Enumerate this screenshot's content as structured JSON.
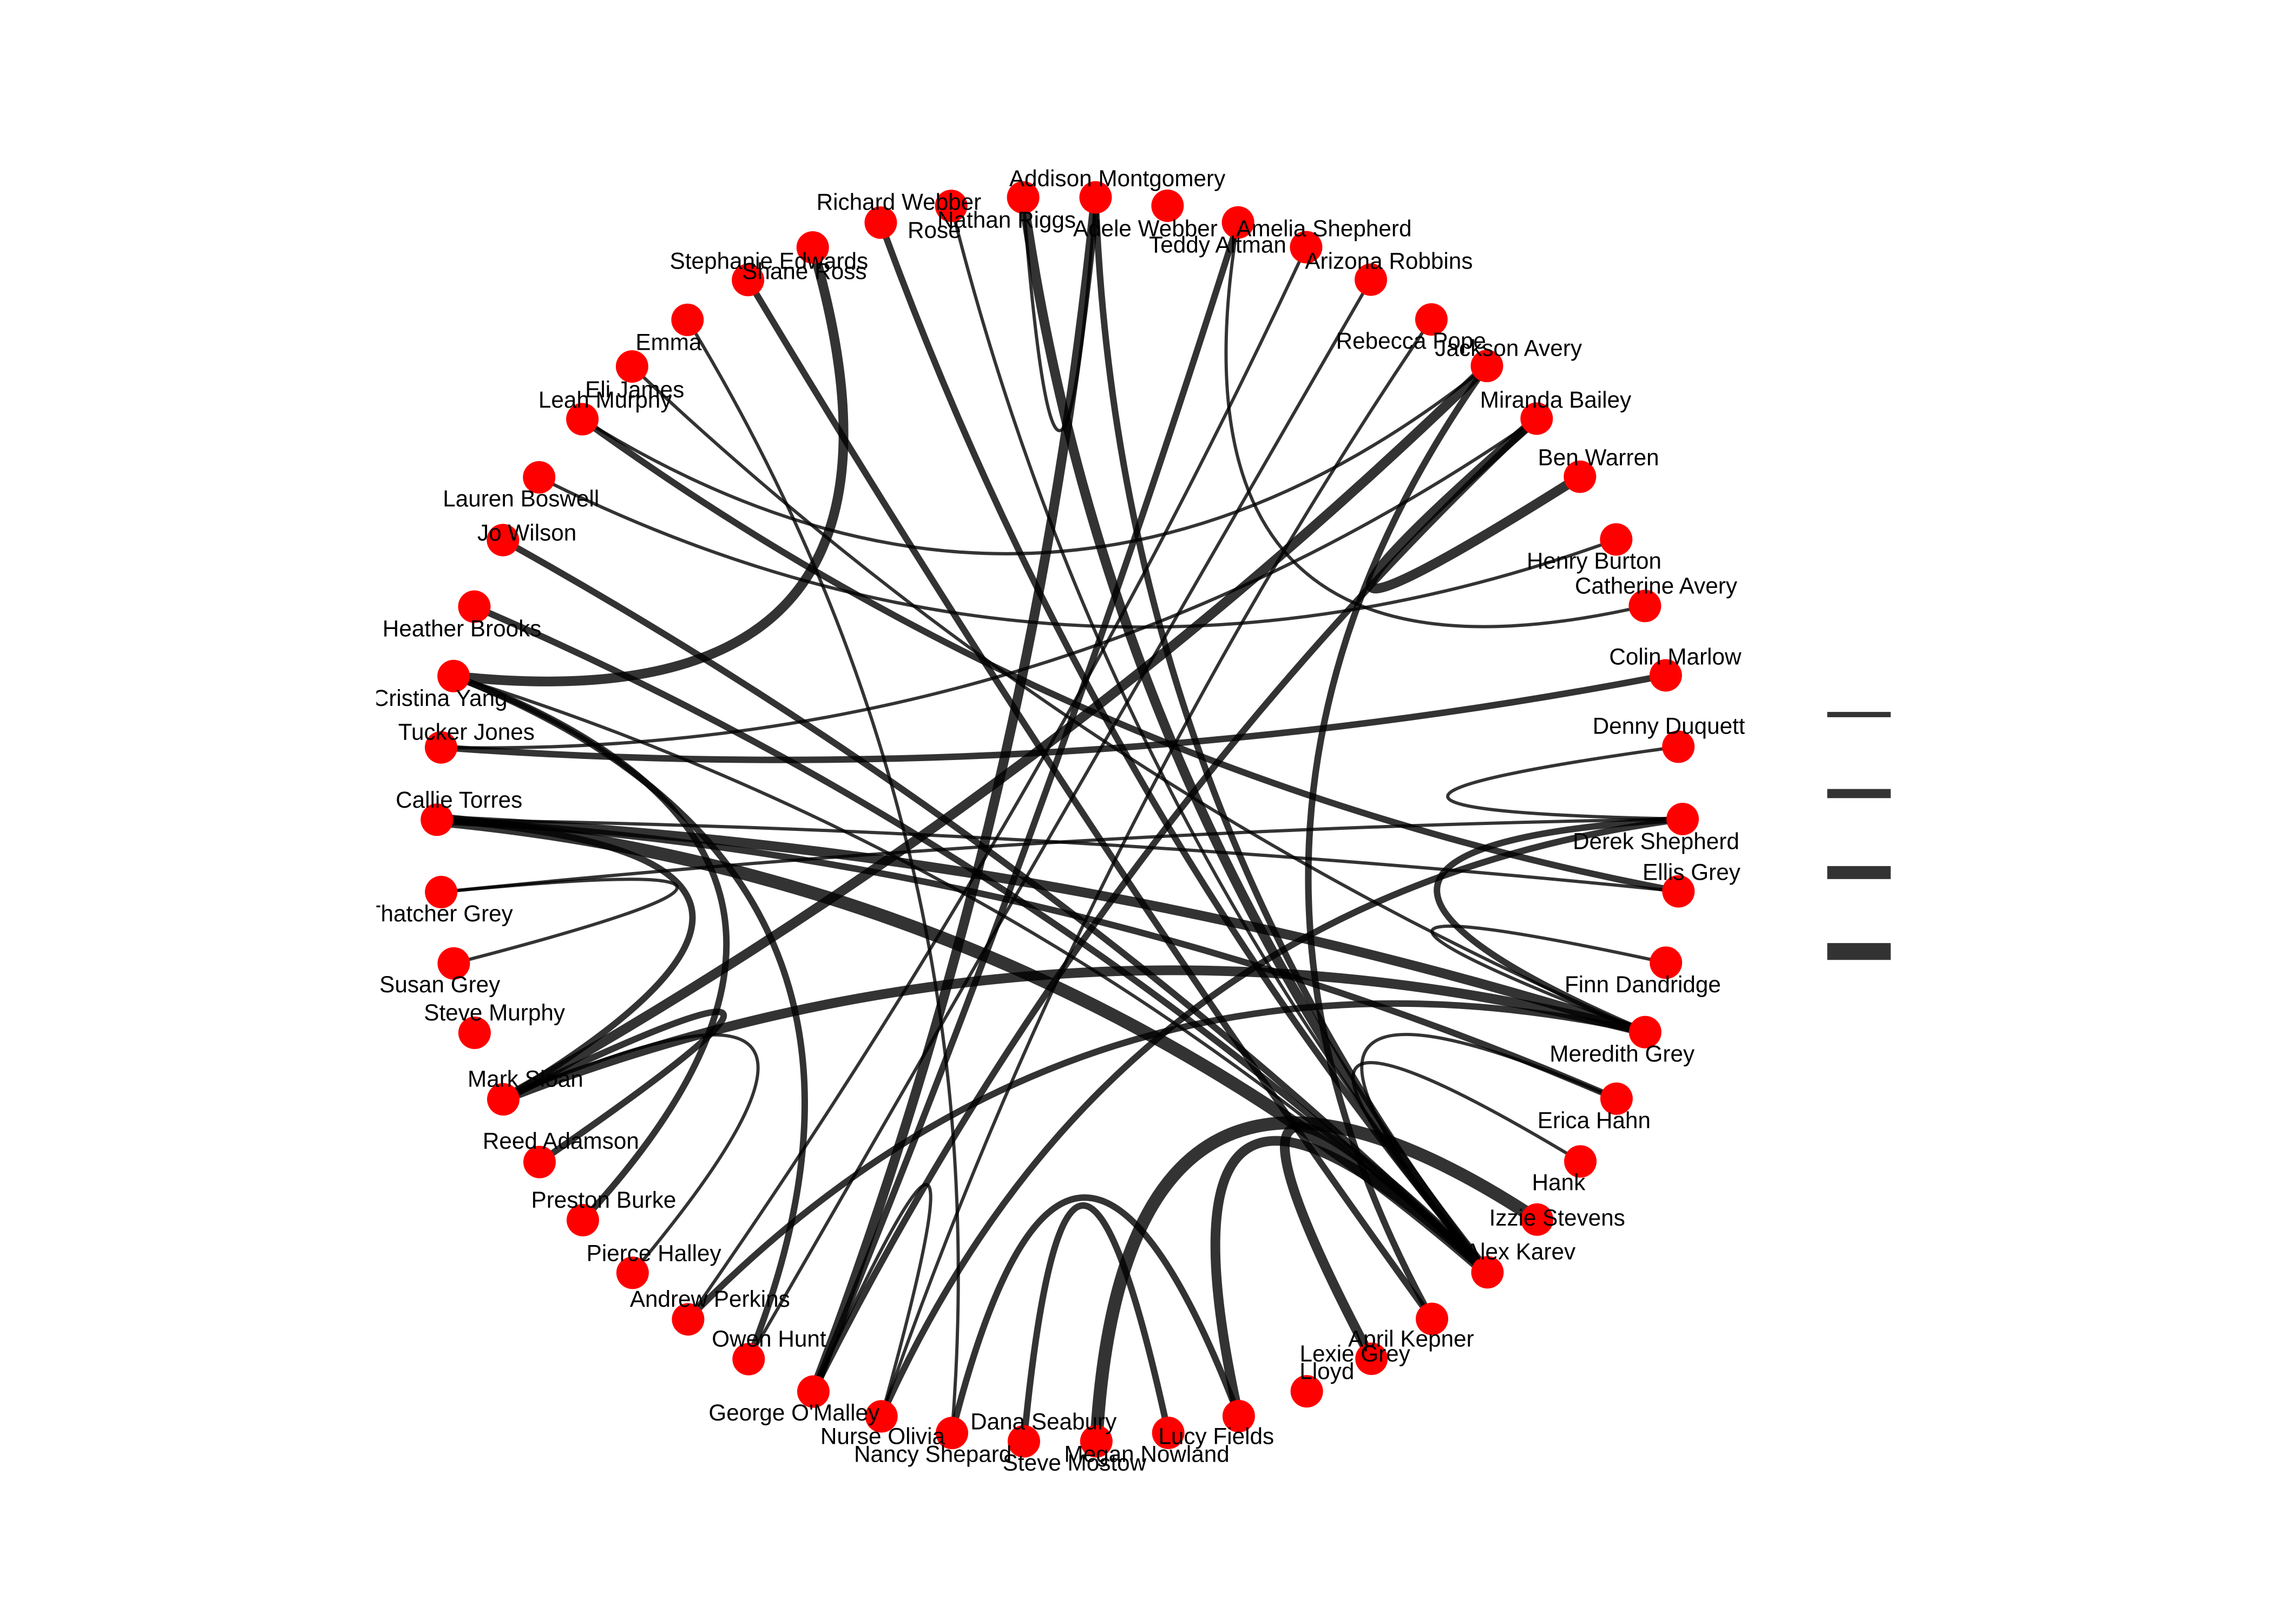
{
  "nodes": [
    {
      "label": "Addison Montgomery"
    },
    {
      "label": "Adele Webber"
    },
    {
      "label": "Amelia Shepherd"
    },
    {
      "label": "Teddy Altman"
    },
    {
      "label": "Arizona Robbins"
    },
    {
      "label": "Rebecca Pope"
    },
    {
      "label": "Jackson Avery"
    },
    {
      "label": "Miranda Bailey"
    },
    {
      "label": "Ben Warren"
    },
    {
      "label": "Henry Burton"
    },
    {
      "label": "Catherine Avery"
    },
    {
      "label": "Colin Marlow"
    },
    {
      "label": "Denny Duquette"
    },
    {
      "label": "Derek Shepherd"
    },
    {
      "label": "Ellis Grey"
    },
    {
      "label": "Finn Dandridge"
    },
    {
      "label": "Meredith Grey"
    },
    {
      "label": "Erica Hahn"
    },
    {
      "label": "Hank"
    },
    {
      "label": "Izzie Stevens"
    },
    {
      "label": "Alex Karev"
    },
    {
      "label": "April Kepner"
    },
    {
      "label": "Lexie Grey"
    },
    {
      "label": "Lloyd"
    },
    {
      "label": "Lucy Fields"
    },
    {
      "label": "Megan Nowland"
    },
    {
      "label": "Steve Mostow"
    },
    {
      "label": "Dana Seabury"
    },
    {
      "label": "Nancy Shepard"
    },
    {
      "label": "Nurse Olivia"
    },
    {
      "label": "George O'Malley"
    },
    {
      "label": "Owen Hunt"
    },
    {
      "label": "Andrew Perkins"
    },
    {
      "label": "Pierce Halley"
    },
    {
      "label": "Preston Burke"
    },
    {
      "label": "Reed Adamson"
    },
    {
      "label": "Mark Sloan"
    },
    {
      "label": "Steve Murphy"
    },
    {
      "label": "Susan Grey"
    },
    {
      "label": "Thatcher Grey"
    },
    {
      "label": "Callie Torres"
    },
    {
      "label": "Tucker Jones"
    },
    {
      "label": "Cristina Yang"
    },
    {
      "label": "Heather Brooks"
    },
    {
      "label": "Jo Wilson"
    },
    {
      "label": "Lauren Boswell"
    },
    {
      "label": "Leah Murphy"
    },
    {
      "label": "Eli James"
    },
    {
      "label": "Emma"
    },
    {
      "label": "Shane Ross"
    },
    {
      "label": "Stephanie Edwards"
    },
    {
      "label": "Rose"
    },
    {
      "label": "Nathan Riggs"
    },
    {
      "label": "Richard Webber"
    }
  ],
  "edges": [
    {
      "source": 20,
      "target": 40,
      "weight": 4
    },
    {
      "source": 19,
      "target": 26,
      "weight": 4
    },
    {
      "source": 20,
      "target": 24,
      "weight": 3
    },
    {
      "source": 20,
      "target": 22,
      "weight": 3
    },
    {
      "source": 20,
      "target": 0,
      "weight": 2
    },
    {
      "source": 20,
      "target": 53,
      "weight": 3
    },
    {
      "source": 20,
      "target": 51,
      "weight": 2
    },
    {
      "source": 20,
      "target": 44,
      "weight": 2
    },
    {
      "source": 20,
      "target": 43,
      "weight": 2
    },
    {
      "source": 20,
      "target": 17,
      "weight": 1
    },
    {
      "source": 20,
      "target": 18,
      "weight": 1
    },
    {
      "source": 36,
      "target": 6,
      "weight": 3
    },
    {
      "source": 36,
      "target": 16,
      "weight": 3
    },
    {
      "source": 36,
      "target": 35,
      "weight": 2
    },
    {
      "source": 36,
      "target": 33,
      "weight": 1
    },
    {
      "source": 0,
      "target": 30,
      "weight": 3
    },
    {
      "source": 30,
      "target": 2,
      "weight": 2
    },
    {
      "source": 30,
      "target": 7,
      "weight": 2
    },
    {
      "source": 30,
      "target": 29,
      "weight": 1
    },
    {
      "source": 40,
      "target": 17,
      "weight": 2
    },
    {
      "source": 40,
      "target": 16,
      "weight": 3
    },
    {
      "source": 40,
      "target": 14,
      "weight": 1
    },
    {
      "source": 40,
      "target": 36,
      "weight": 2
    },
    {
      "source": 42,
      "target": 50,
      "weight": 3
    },
    {
      "source": 42,
      "target": 31,
      "weight": 2
    },
    {
      "source": 42,
      "target": 34,
      "weight": 2
    },
    {
      "source": 42,
      "target": 20,
      "weight": 1
    },
    {
      "source": 41,
      "target": 11,
      "weight": 2
    },
    {
      "source": 39,
      "target": 38,
      "weight": 1
    },
    {
      "source": 39,
      "target": 13,
      "weight": 1
    },
    {
      "source": 13,
      "target": 16,
      "weight": 2
    },
    {
      "source": 46,
      "target": 14,
      "weight": 2
    },
    {
      "source": 13,
      "target": 12,
      "weight": 1
    },
    {
      "source": 16,
      "target": 15,
      "weight": 1
    },
    {
      "source": 7,
      "target": 8,
      "weight": 3
    },
    {
      "source": 7,
      "target": 41,
      "weight": 1
    },
    {
      "source": 6,
      "target": 21,
      "weight": 2
    },
    {
      "source": 6,
      "target": 46,
      "weight": 1
    },
    {
      "source": 49,
      "target": 21,
      "weight": 2
    },
    {
      "source": 48,
      "target": 28,
      "weight": 1
    },
    {
      "source": 47,
      "target": 16,
      "weight": 1
    },
    {
      "source": 45,
      "target": 9,
      "weight": 1
    },
    {
      "source": 53,
      "target": 0,
      "weight": 1
    },
    {
      "source": 52,
      "target": 20,
      "weight": 1
    },
    {
      "source": 2,
      "target": 10,
      "weight": 1
    },
    {
      "source": 3,
      "target": 32,
      "weight": 1
    },
    {
      "source": 4,
      "target": 31,
      "weight": 1
    },
    {
      "source": 5,
      "target": 29,
      "weight": 1
    },
    {
      "source": 29,
      "target": 13,
      "weight": 2
    },
    {
      "source": 28,
      "target": 24,
      "weight": 2
    },
    {
      "source": 27,
      "target": 25,
      "weight": 2
    },
    {
      "source": 32,
      "target": 16,
      "weight": 2
    }
  ],
  "edge_weight_levels": [
    1,
    2,
    3,
    4
  ]
}
